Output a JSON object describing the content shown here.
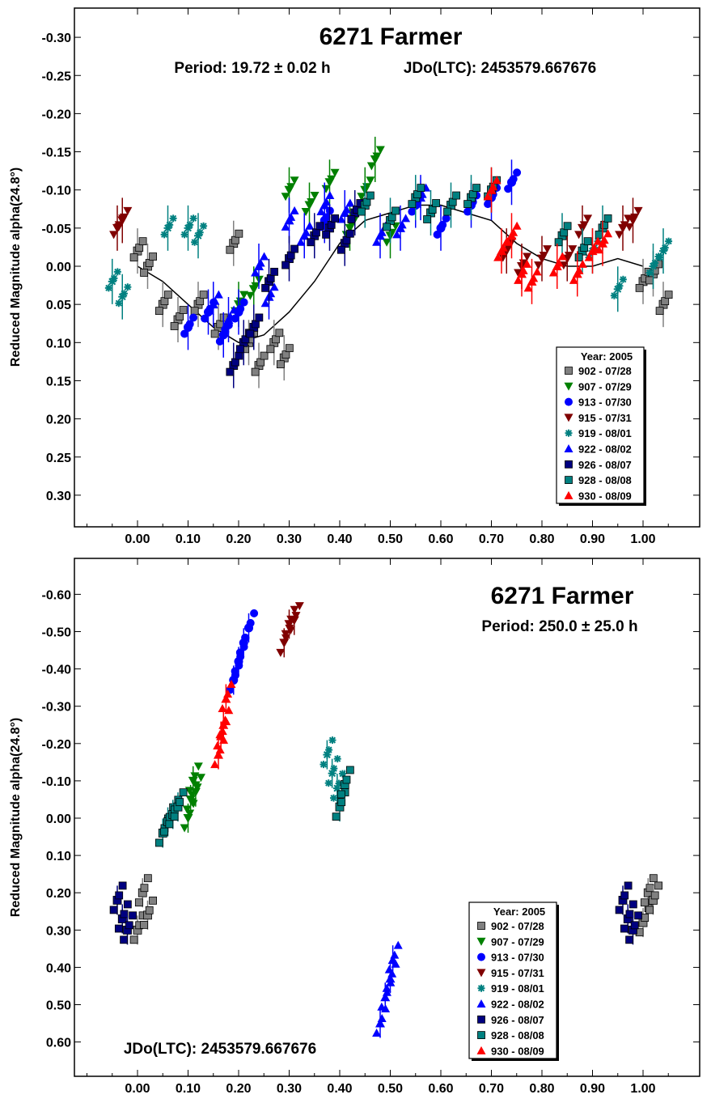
{
  "chart_data": [
    {
      "type": "scatter",
      "title": "6271 Farmer",
      "subtitle_period": "Period: 19.72 ± 0.02 h",
      "subtitle_jdo": "JDo(LTC): 2453579.667676",
      "ylabel": "Reduced Magnitude alpha(24.8°)",
      "xlabel": "",
      "xlim": [
        -0.12,
        1.1
      ],
      "ylim": [
        -0.35,
        0.35
      ],
      "y_inverted": true,
      "xticks": [
        "0.00",
        "0.10",
        "0.20",
        "0.30",
        "0.40",
        "0.50",
        "0.60",
        "0.70",
        "0.80",
        "0.90",
        "1.00"
      ],
      "yticks": [
        "-0.30",
        "-0.25",
        "-0.20",
        "-0.15",
        "-0.10",
        "-0.05",
        "0.00",
        "0.05",
        "0.10",
        "0.15",
        "0.20",
        "0.25",
        "0.30"
      ],
      "grid": false,
      "legend_position": "bottom-right",
      "legend_title": "Year: 2005",
      "fit_curve": {
        "phase": [
          0.0,
          0.05,
          0.1,
          0.15,
          0.2,
          0.25,
          0.3,
          0.35,
          0.4,
          0.45,
          0.5,
          0.55,
          0.6,
          0.65,
          0.7,
          0.75,
          0.8,
          0.85,
          0.9,
          0.95,
          1.0
        ],
        "mag": [
          0.0,
          0.02,
          0.05,
          0.08,
          0.1,
          0.09,
          0.06,
          0.02,
          -0.03,
          -0.06,
          -0.07,
          -0.08,
          -0.08,
          -0.07,
          -0.06,
          -0.03,
          -0.01,
          0.0,
          0.0,
          -0.01,
          0.0
        ]
      },
      "series": [
        {
          "name": "902 - 07/28",
          "color": "#808080",
          "marker": "square",
          "x": [
            0.0,
            0.02,
            0.05,
            0.08,
            0.12,
            0.16,
            0.19,
            0.22,
            0.24,
            0.27,
            0.29,
            1.0,
            1.02,
            1.04
          ],
          "y": [
            -0.02,
            0.0,
            0.05,
            0.07,
            0.05,
            0.08,
            -0.03,
            0.1,
            0.13,
            0.1,
            0.12,
            0.02,
            0.01,
            0.05
          ]
        },
        {
          "name": "907 - 07/29",
          "color": "#008000",
          "marker": "triangle-down",
          "x": [
            0.2,
            0.23,
            0.3,
            0.34,
            0.38,
            0.42,
            0.45,
            0.47,
            0.5
          ],
          "y": [
            0.05,
            0.03,
            -0.1,
            -0.08,
            -0.11,
            -0.05,
            -0.1,
            -0.14,
            -0.04
          ]
        },
        {
          "name": "913 - 07/30",
          "color": "#0000ff",
          "marker": "circle",
          "x": [
            0.1,
            0.14,
            0.17,
            0.2,
            0.37,
            0.55,
            0.6,
            0.66,
            0.7,
            0.74
          ],
          "y": [
            0.08,
            0.06,
            0.09,
            0.06,
            -0.06,
            -0.08,
            -0.05,
            -0.08,
            -0.09,
            -0.11
          ]
        },
        {
          "name": "915 - 07/31",
          "color": "#800000",
          "marker": "triangle-down",
          "x": [
            -0.04,
            -0.03,
            0.73,
            0.76,
            0.8,
            0.85,
            0.88,
            0.96,
            0.98
          ],
          "y": [
            -0.05,
            -0.06,
            -0.02,
            0.0,
            -0.01,
            -0.01,
            -0.05,
            -0.05,
            -0.06
          ]
        },
        {
          "name": "919 - 08/01",
          "color": "#008080",
          "marker": "star",
          "x": [
            -0.05,
            -0.03,
            0.06,
            0.1,
            0.12,
            0.9,
            0.95,
            1.02,
            1.04
          ],
          "y": [
            0.02,
            0.04,
            -0.05,
            -0.05,
            -0.04,
            -0.02,
            0.03,
            0.0,
            -0.02
          ]
        },
        {
          "name": "922 - 08/02",
          "color": "#0000ff",
          "marker": "triangle-up",
          "x": [
            0.15,
            0.18,
            0.24,
            0.26,
            0.3,
            0.33,
            0.37,
            0.41,
            0.48,
            0.52,
            0.56
          ],
          "y": [
            0.05,
            0.07,
            0.0,
            0.04,
            -0.06,
            -0.04,
            -0.08,
            -0.07,
            -0.04,
            -0.05,
            -0.09
          ]
        },
        {
          "name": "926 - 08/07",
          "color": "#000080",
          "marker": "square",
          "x": [
            0.19,
            0.21,
            0.23,
            0.26,
            0.3,
            0.35,
            0.38,
            0.41,
            0.43
          ],
          "y": [
            0.13,
            0.1,
            0.08,
            0.02,
            -0.01,
            -0.04,
            -0.05,
            -0.03,
            -0.07
          ]
        },
        {
          "name": "928 - 08/08",
          "color": "#008080",
          "marker": "square",
          "x": [
            0.45,
            0.5,
            0.55,
            0.58,
            0.62,
            0.66,
            0.7,
            0.84,
            0.88,
            0.92
          ],
          "y": [
            -0.08,
            -0.06,
            -0.09,
            -0.07,
            -0.08,
            -0.09,
            -0.1,
            -0.04,
            -0.02,
            -0.05
          ]
        },
        {
          "name": "930 - 08/09",
          "color": "#ff0000",
          "marker": "triangle-up",
          "x": [
            0.7,
            0.72,
            0.74,
            0.76,
            0.78,
            0.83,
            0.87,
            0.9,
            0.92
          ],
          "y": [
            -0.1,
            -0.02,
            -0.04,
            0.01,
            0.02,
            0.0,
            0.01,
            -0.02,
            -0.03
          ]
        }
      ]
    },
    {
      "type": "scatter",
      "title": "6271 Farmer",
      "subtitle_period": "Period: 250.0 ± 25.0 h",
      "subtitle_jdo": "JDo(LTC): 2453579.667676",
      "ylabel": "Reduced Magnitude alpha(24.8°)",
      "xlabel": "",
      "xlim": [
        -0.12,
        1.1
      ],
      "ylim": [
        -0.7,
        0.7
      ],
      "y_inverted": true,
      "xticks": [
        "0.00",
        "0.10",
        "0.20",
        "0.30",
        "0.40",
        "0.50",
        "0.60",
        "0.70",
        "0.80",
        "0.90",
        "1.00"
      ],
      "yticks": [
        "-0.60",
        "-0.50",
        "-0.40",
        "-0.30",
        "-0.20",
        "-0.10",
        "0.00",
        "0.10",
        "0.20",
        "0.30",
        "0.40",
        "0.50",
        "0.60"
      ],
      "grid": false,
      "legend_position": "bottom-right",
      "legend_title": "Year: 2005",
      "series": [
        {
          "name": "902 - 07/28",
          "color": "#808080",
          "marker": "square",
          "x": [
            0.0,
            0.01,
            0.02,
            1.0,
            1.01,
            1.02
          ],
          "y": [
            0.3,
            0.2,
            0.26,
            0.28,
            0.2,
            0.22
          ]
        },
        {
          "name": "907 - 07/29",
          "color": "#008000",
          "marker": "triangle-down",
          "x": [
            0.1,
            0.105,
            0.11,
            0.115
          ],
          "y": [
            0.0,
            -0.05,
            -0.1,
            -0.07
          ]
        },
        {
          "name": "913 - 07/30",
          "color": "#0000ff",
          "marker": "circle",
          "x": [
            0.19,
            0.2,
            0.21,
            0.22
          ],
          "y": [
            -0.37,
            -0.42,
            -0.47,
            -0.51
          ]
        },
        {
          "name": "915 - 07/31",
          "color": "#800000",
          "marker": "triangle-down",
          "x": [
            0.29,
            0.3,
            0.31
          ],
          "y": [
            -0.47,
            -0.52,
            -0.53
          ]
        },
        {
          "name": "919 - 08/01",
          "color": "#008080",
          "marker": "star",
          "x": [
            0.375,
            0.385,
            0.395
          ],
          "y": [
            -0.17,
            -0.12,
            -0.08
          ]
        },
        {
          "name": "922 - 08/02",
          "color": "#0000ff",
          "marker": "triangle-up",
          "x": [
            0.48,
            0.49,
            0.5,
            0.505
          ],
          "y": [
            0.55,
            0.48,
            0.43,
            0.38
          ]
        },
        {
          "name": "926 - 08/07",
          "color": "#000080",
          "marker": "square",
          "x": [
            -0.04,
            -0.03,
            -0.02,
            0.96,
            0.97,
            0.98
          ],
          "y": [
            0.22,
            0.27,
            0.3,
            0.22,
            0.27,
            0.3
          ]
        },
        {
          "name": "928 - 08/08",
          "color": "#008080",
          "marker": "square",
          "x": [
            0.05,
            0.06,
            0.07,
            0.08,
            0.4,
            0.41
          ],
          "y": [
            0.04,
            0.01,
            -0.01,
            -0.03,
            -0.03,
            -0.09
          ]
        },
        {
          "name": "930 - 08/09",
          "color": "#ff0000",
          "marker": "triangle-up",
          "x": [
            0.16,
            0.165,
            0.17,
            0.175
          ],
          "y": [
            -0.17,
            -0.22,
            -0.25,
            -0.32
          ]
        }
      ]
    }
  ]
}
